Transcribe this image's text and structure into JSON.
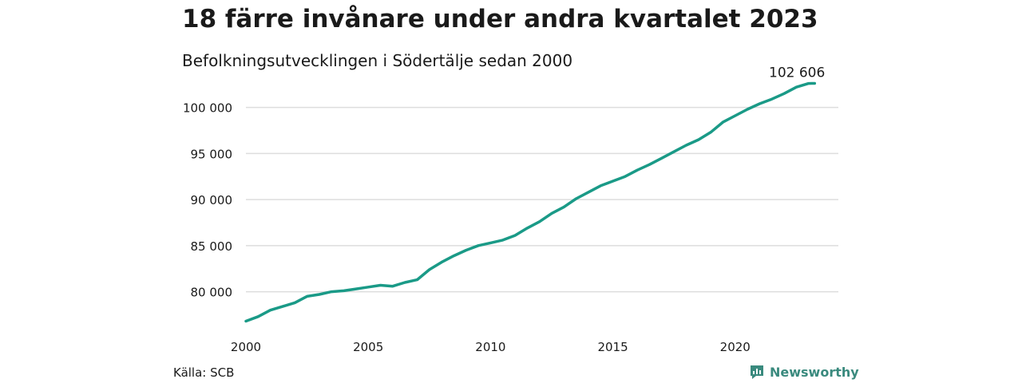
{
  "header": {
    "title": "18 färre invånare under andra kvartalet 2023",
    "subtitle": "Befolkningsutvecklingen i Södertälje sedan 2000"
  },
  "footer": {
    "source": "Källa: SCB",
    "brand": "Newsworthy",
    "brand_icon": "newsworthy-logo-icon"
  },
  "colors": {
    "line": "#1a9a87",
    "grid": "#dddddd",
    "text": "#1a1a1a",
    "brand": "#3a8a7e"
  },
  "chart_data": {
    "type": "line",
    "title": "18 färre invånare under andra kvartalet 2023",
    "subtitle": "Befolkningsutvecklingen i Södertälje sedan 2000",
    "xlabel": "",
    "ylabel": "",
    "xlim": [
      2000,
      2023.5
    ],
    "ylim": [
      76500,
      103000
    ],
    "grid": true,
    "x_ticks": [
      2000,
      2005,
      2010,
      2015,
      2020
    ],
    "x_tick_labels": [
      "2000",
      "2005",
      "2010",
      "2015",
      "2020"
    ],
    "y_ticks": [
      80000,
      85000,
      90000,
      95000,
      100000
    ],
    "y_tick_labels": [
      "80 000",
      "85 000",
      "90 000",
      "95 000",
      "100 000"
    ],
    "end_label": "102 606",
    "series": [
      {
        "x": [
          2000.0,
          2000.5,
          2001.0,
          2001.5,
          2002.0,
          2002.5,
          2003.0,
          2003.5,
          2004.0,
          2004.5,
          2005.0,
          2005.5,
          2006.0,
          2006.5,
          2007.0,
          2007.5,
          2008.0,
          2008.5,
          2009.0,
          2009.5,
          2010.0,
          2010.5,
          2011.0,
          2011.5,
          2012.0,
          2012.5,
          2013.0,
          2013.5,
          2014.0,
          2014.5,
          2015.0,
          2015.5,
          2016.0,
          2016.5,
          2017.0,
          2017.5,
          2018.0,
          2018.5,
          2019.0,
          2019.5,
          2020.0,
          2020.5,
          2021.0,
          2021.5,
          2022.0,
          2022.5,
          2023.0,
          2023.25
        ],
        "y": [
          76800,
          77300,
          78000,
          78400,
          78800,
          79500,
          79700,
          80000,
          80100,
          80300,
          80500,
          80700,
          80600,
          81000,
          81300,
          82400,
          83200,
          83900,
          84500,
          85000,
          85300,
          85600,
          86100,
          86900,
          87600,
          88500,
          89200,
          90100,
          90800,
          91500,
          92000,
          92500,
          93200,
          93800,
          94500,
          95200,
          95900,
          96500,
          97300,
          98400,
          99100,
          99800,
          100400,
          100900,
          101500,
          102200,
          102600,
          102606
        ]
      }
    ]
  }
}
